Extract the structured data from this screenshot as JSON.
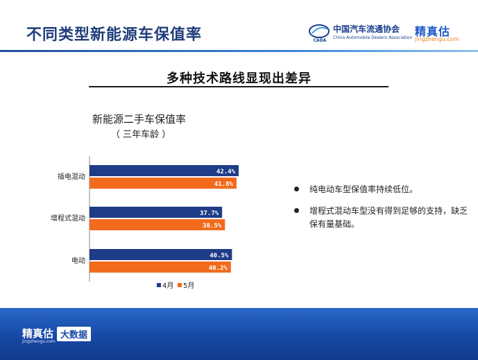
{
  "header": {
    "title": "不同类型新能源车保值率",
    "cada_logo": {
      "name_cn": "中国汽车流通协会",
      "name_en": "China Automobile Dealers Association",
      "mark_text": "CADA"
    },
    "brand_logo": {
      "name": "精真估",
      "url": "jingzhengu.com"
    }
  },
  "subtitle": "多种技术路线显现出差异",
  "chart_data": {
    "type": "bar",
    "orientation": "horizontal",
    "title": "新能源二手车保值率",
    "subtitle": "（  三年车龄  ）",
    "categories": [
      "插电混动",
      "增程式混动",
      "电动"
    ],
    "series": [
      {
        "name": "4月",
        "values": [
          42.4,
          37.7,
          40.5
        ],
        "labels": [
          "42.4%",
          "37.7%",
          "40.5%"
        ],
        "color": "#1f3c88"
      },
      {
        "name": "5月",
        "values": [
          41.8,
          38.5,
          40.2
        ],
        "labels": [
          "41.8%",
          "38.5%",
          "40.2%"
        ],
        "color": "#f26b1d"
      }
    ],
    "legend": "bottom",
    "grid": false
  },
  "notes": [
    "纯电动车型保值率持续低位。",
    "增程式混动车型没有得到足够的支持，缺乏保有量基础。"
  ],
  "footer": {
    "brand": "精真估",
    "url": "jingzhengu.com",
    "badge": "大数据"
  }
}
